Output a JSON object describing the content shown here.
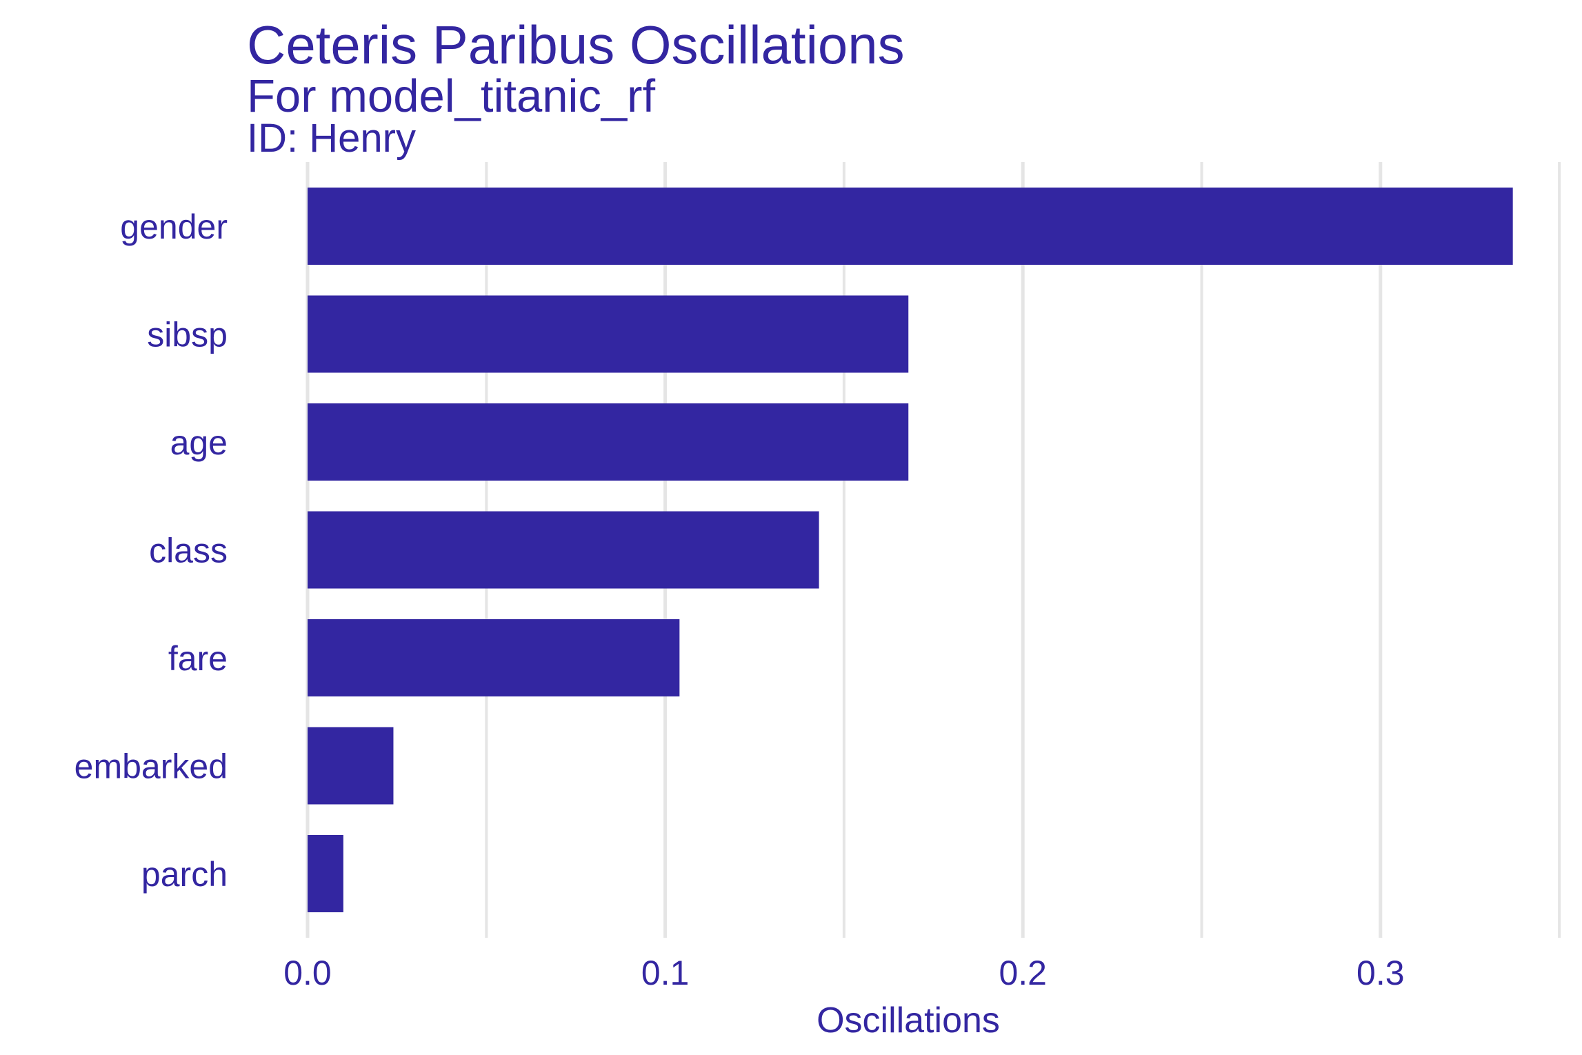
{
  "chart_data": {
    "type": "bar",
    "orientation": "horizontal",
    "title": "Ceteris Paribus Oscillations",
    "subtitle": "For model_titanic_rf",
    "caption_line": "ID: Henry",
    "categories": [
      "gender",
      "sibsp",
      "age",
      "class",
      "fare",
      "embarked",
      "parch"
    ],
    "values": [
      0.337,
      0.168,
      0.168,
      0.143,
      0.104,
      0.024,
      0.01
    ],
    "xlabel": "Oscillations",
    "ylabel": "",
    "xlim": [
      0,
      0.35
    ],
    "xticks": [
      0.0,
      0.1,
      0.2,
      0.3
    ],
    "xtick_labels": [
      "0.0",
      "0.1",
      "0.2",
      "0.3"
    ],
    "grid": "vertical major and minor",
    "bar_color": "#3326A1",
    "text_color": "#3326A1",
    "grid_color": "#E5E5E5"
  }
}
